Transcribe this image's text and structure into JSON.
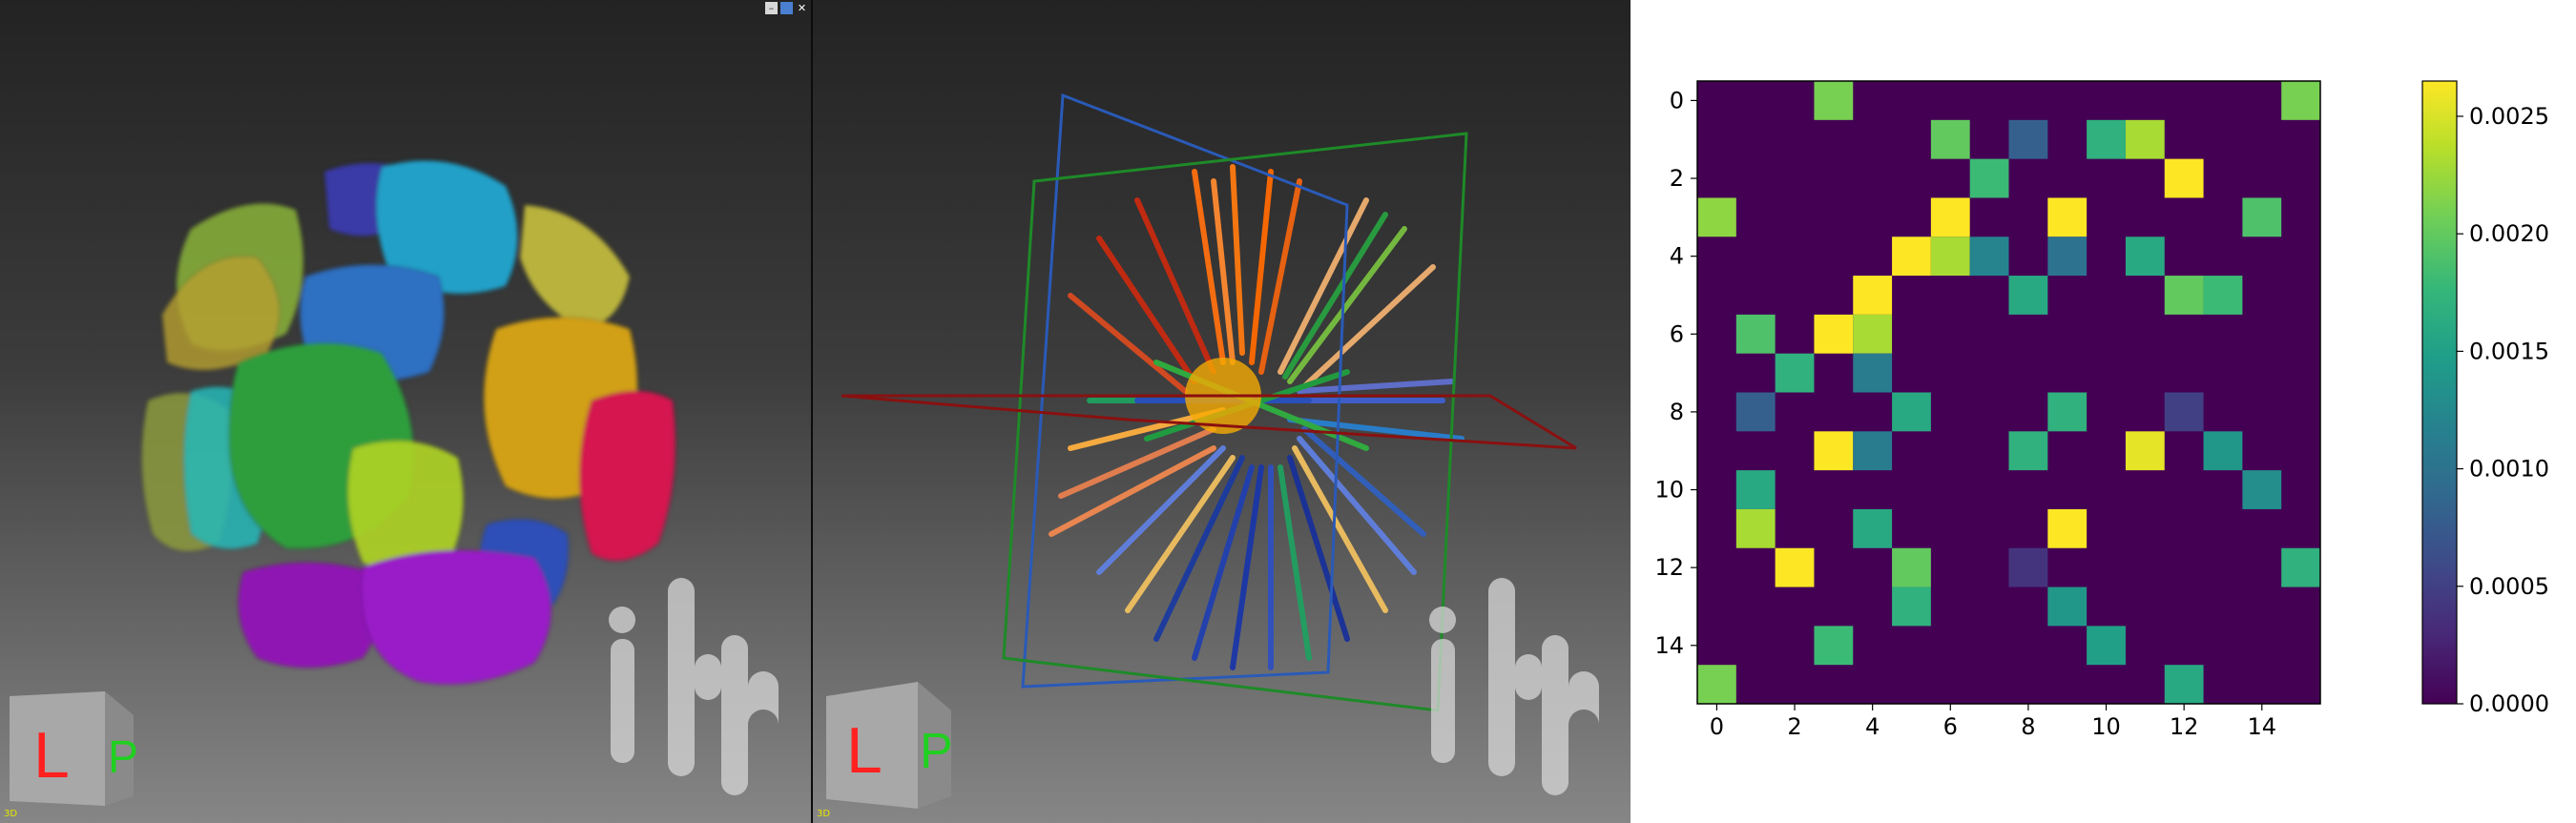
{
  "viewports": {
    "left": {
      "corner_label": "3D"
    },
    "right": {
      "corner_label": "3D"
    },
    "window_controls": [
      "–",
      "■",
      "✕"
    ]
  },
  "orientation_cube": {
    "face_left": "L",
    "face_front": "P"
  },
  "chart_data": {
    "type": "heatmap",
    "colormap": "viridis",
    "rows": 16,
    "cols": 16,
    "x_ticks": [
      0,
      2,
      4,
      6,
      8,
      10,
      12,
      14
    ],
    "y_ticks": [
      0,
      2,
      4,
      6,
      8,
      10,
      12,
      14
    ],
    "colorbar": {
      "min": 0,
      "max": 0.00265,
      "ticks": [
        "0.0000",
        "0.0005",
        "0.0010",
        "0.0015",
        "0.0020",
        "0.0025"
      ]
    },
    "cells": [
      [
        0,
        3,
        0.0021
      ],
      [
        0,
        15,
        0.0021
      ],
      [
        1,
        6,
        0.002
      ],
      [
        1,
        8,
        0.0008
      ],
      [
        1,
        10,
        0.0017
      ],
      [
        1,
        11,
        0.0023
      ],
      [
        2,
        7,
        0.0018
      ],
      [
        2,
        12,
        0.00265
      ],
      [
        3,
        0,
        0.0022
      ],
      [
        3,
        6,
        0.00265
      ],
      [
        3,
        9,
        0.00265
      ],
      [
        3,
        14,
        0.0019
      ],
      [
        4,
        5,
        0.00265
      ],
      [
        4,
        6,
        0.0023
      ],
      [
        4,
        7,
        0.0012
      ],
      [
        4,
        9,
        0.001
      ],
      [
        4,
        11,
        0.0016
      ],
      [
        5,
        4,
        0.00265
      ],
      [
        5,
        8,
        0.0016
      ],
      [
        5,
        12,
        0.002
      ],
      [
        5,
        13,
        0.0018
      ],
      [
        6,
        1,
        0.0019
      ],
      [
        6,
        3,
        0.00265
      ],
      [
        6,
        4,
        0.0023
      ],
      [
        7,
        2,
        0.0017
      ],
      [
        7,
        4,
        0.0011
      ],
      [
        8,
        1,
        0.0008
      ],
      [
        8,
        5,
        0.0016
      ],
      [
        8,
        9,
        0.0017
      ],
      [
        8,
        12,
        0.0005
      ],
      [
        9,
        3,
        0.00265
      ],
      [
        9,
        4,
        0.0011
      ],
      [
        9,
        8,
        0.0017
      ],
      [
        9,
        11,
        0.00255
      ],
      [
        9,
        13,
        0.0014
      ],
      [
        10,
        1,
        0.0016
      ],
      [
        10,
        14,
        0.0013
      ],
      [
        11,
        1,
        0.0023
      ],
      [
        11,
        4,
        0.0016
      ],
      [
        11,
        9,
        0.00265
      ],
      [
        12,
        2,
        0.00265
      ],
      [
        12,
        5,
        0.002
      ],
      [
        12,
        8,
        0.0004
      ],
      [
        12,
        15,
        0.0017
      ],
      [
        13,
        5,
        0.0017
      ],
      [
        13,
        9,
        0.0014
      ],
      [
        14,
        3,
        0.0018
      ],
      [
        14,
        10,
        0.0015
      ],
      [
        15,
        0,
        0.0021
      ],
      [
        15,
        12,
        0.0016
      ]
    ]
  }
}
